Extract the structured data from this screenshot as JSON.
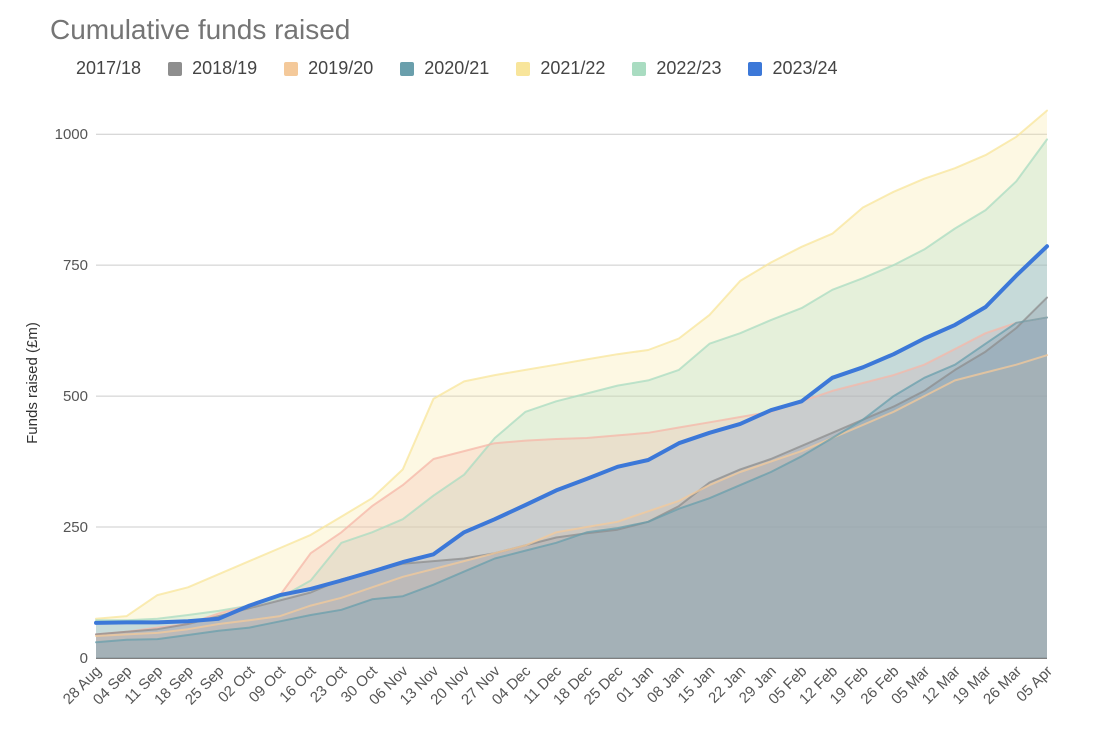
{
  "chart_data": {
    "type": "area",
    "title": "Cumulative funds raised",
    "ylabel": "Funds raised (£m)",
    "xlabel": "",
    "ylim": [
      0,
      1050
    ],
    "yticks": [
      "0",
      "250",
      "500",
      "750",
      "1000"
    ],
    "categories": [
      "28 Aug",
      "04 Sep",
      "11 Sep",
      "18 Sep",
      "25 Sep",
      "02 Oct",
      "09 Oct",
      "16 Oct",
      "23 Oct",
      "30 Oct",
      "06 Nov",
      "13 Nov",
      "20 Nov",
      "27 Nov",
      "04 Dec",
      "11 Dec",
      "18 Dec",
      "25 Dec",
      "01 Jan",
      "08 Jan",
      "15 Jan",
      "22 Jan",
      "29 Jan",
      "05 Feb",
      "12 Feb",
      "19 Feb",
      "26 Feb",
      "05 Mar",
      "12 Mar",
      "19 Mar",
      "26 Mar",
      "05 Apr"
    ],
    "series": [
      {
        "name": "2017/18",
        "color": "#f5b7a8",
        "values": [
          45,
          50,
          58,
          65,
          85,
          100,
          120,
          200,
          240,
          290,
          330,
          380,
          395,
          410,
          415,
          418,
          420,
          425,
          430,
          440,
          450,
          460,
          470,
          490,
          510,
          525,
          540,
          560,
          590,
          620,
          640,
          650
        ]
      },
      {
        "name": "2018/19",
        "color": "#8e8e8e",
        "values": [
          45,
          50,
          55,
          65,
          80,
          95,
          110,
          125,
          150,
          165,
          180,
          185,
          190,
          200,
          215,
          230,
          238,
          245,
          260,
          290,
          335,
          360,
          380,
          405,
          430,
          455,
          480,
          510,
          550,
          585,
          630,
          688
        ]
      },
      {
        "name": "2019/20",
        "color": "#f4c99a",
        "values": [
          42,
          45,
          48,
          55,
          65,
          72,
          80,
          100,
          115,
          135,
          155,
          170,
          185,
          200,
          215,
          240,
          250,
          260,
          280,
          300,
          330,
          355,
          375,
          395,
          420,
          445,
          470,
          500,
          530,
          545,
          560,
          578
        ]
      },
      {
        "name": "2020/21",
        "color": "#6a9fac",
        "values": [
          30,
          35,
          36,
          44,
          52,
          58,
          70,
          82,
          92,
          112,
          118,
          140,
          165,
          190,
          205,
          220,
          240,
          248,
          260,
          285,
          305,
          330,
          355,
          385,
          420,
          455,
          500,
          535,
          560,
          600,
          640,
          650
        ]
      },
      {
        "name": "2021/22",
        "color": "#f8e59b",
        "values": [
          75,
          80,
          120,
          135,
          160,
          185,
          210,
          235,
          270,
          305,
          360,
          495,
          528,
          540,
          550,
          560,
          570,
          580,
          588,
          610,
          655,
          720,
          755,
          785,
          810,
          860,
          890,
          915,
          935,
          960,
          995,
          1045
        ]
      },
      {
        "name": "2022/23",
        "color": "#a9dcc1",
        "values": [
          72,
          72,
          75,
          82,
          90,
          100,
          115,
          148,
          220,
          240,
          265,
          310,
          350,
          420,
          470,
          490,
          505,
          520,
          530,
          550,
          600,
          620,
          645,
          668,
          703,
          725,
          750,
          780,
          820,
          855,
          910,
          990
        ]
      },
      {
        "name": "2023/24",
        "color": "#3c78d8",
        "values": [
          67,
          68,
          68,
          70,
          75,
          100,
          120,
          132,
          148,
          165,
          183,
          198,
          240,
          265,
          292,
          320,
          342,
          365,
          378,
          410,
          430,
          447,
          473,
          490,
          535,
          555,
          580,
          610,
          636,
          670,
          730,
          786
        ]
      }
    ]
  }
}
